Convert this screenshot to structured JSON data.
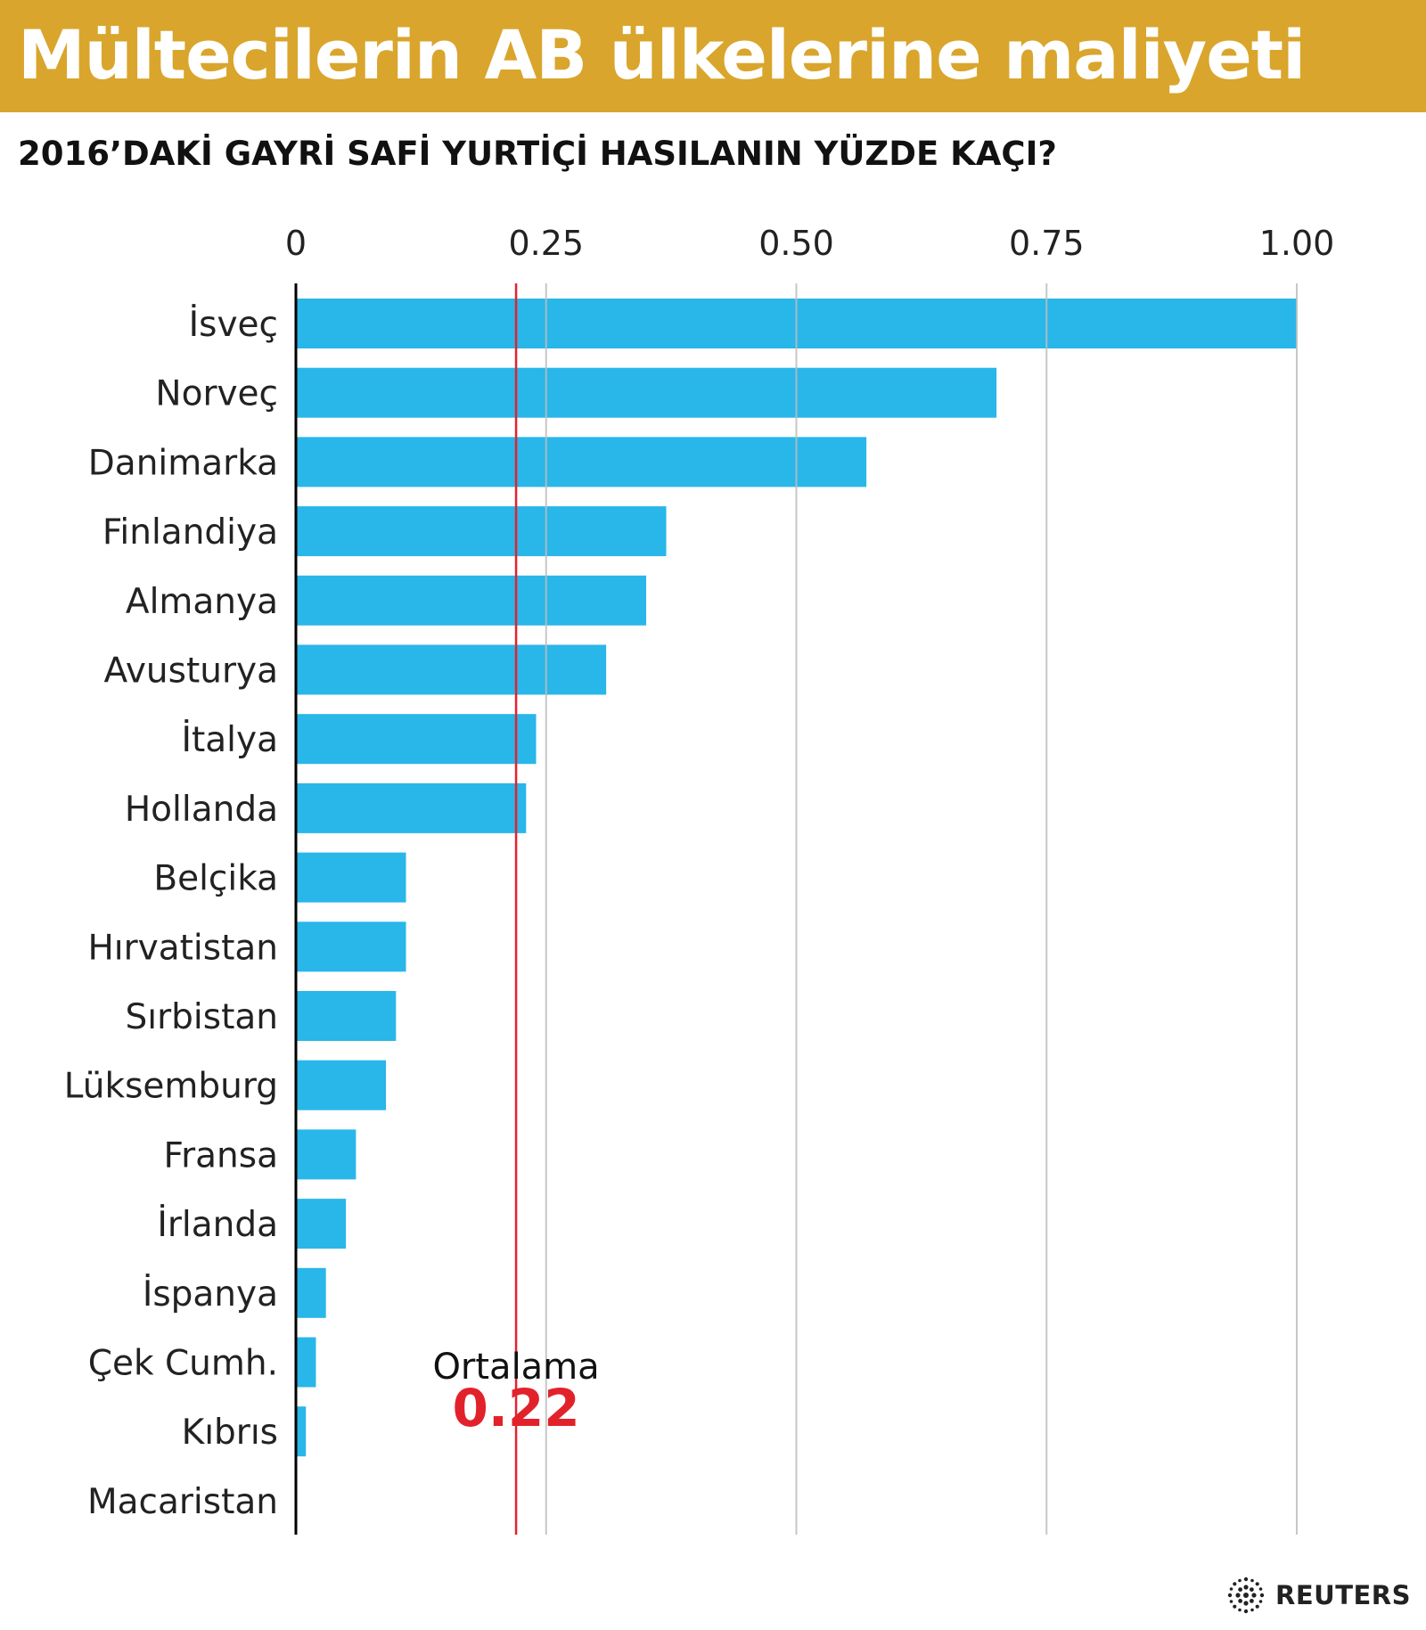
{
  "header": {
    "title": "Mültecilerin AB ülkelerine maliyeti",
    "subtitle": "2016’DAKİ GAYRİ SAFİ YURTİÇİ HASILANIN YÜZDE KAÇI?"
  },
  "source_logo": {
    "text": "REUTERS",
    "icon": "reuters-logo-icon"
  },
  "colors": {
    "header_bg": "#d9a52c",
    "bar": "#29b6e9",
    "average_line": "#e2222b",
    "grid": "#bdbdbd",
    "axis": "#000000"
  },
  "chart_data": {
    "type": "bar",
    "orientation": "horizontal",
    "title": "Mültecilerin AB ülkelerine maliyeti",
    "subtitle": "2016’DAKİ GAYRİ SAFİ YURTİÇİ HASILANIN YÜZDE KAÇI?",
    "xlim": [
      0,
      1.0
    ],
    "x_ticks": [
      0,
      0.25,
      0.5,
      0.75,
      1.0
    ],
    "x_tick_labels": [
      "0",
      "0.25",
      "0.50",
      "0.75",
      "1.00"
    ],
    "x_axis_position": "top",
    "grid": true,
    "categories": [
      "İsveç",
      "Norveç",
      "Danimarka",
      "Finlandiya",
      "Almanya",
      "Avusturya",
      "İtalya",
      "Hollanda",
      "Belçika",
      "Hırvatistan",
      "Sırbistan",
      "Lüksemburg",
      "Fransa",
      "İrlanda",
      "İspanya",
      "Çek Cumh.",
      "Kıbrıs",
      "Macaristan"
    ],
    "values": [
      1.0,
      0.7,
      0.57,
      0.37,
      0.35,
      0.31,
      0.24,
      0.23,
      0.11,
      0.11,
      0.1,
      0.09,
      0.06,
      0.05,
      0.03,
      0.02,
      0.01,
      0.0
    ],
    "average": {
      "label": "Ortalama",
      "value": 0.22,
      "value_label": "0.22"
    }
  }
}
